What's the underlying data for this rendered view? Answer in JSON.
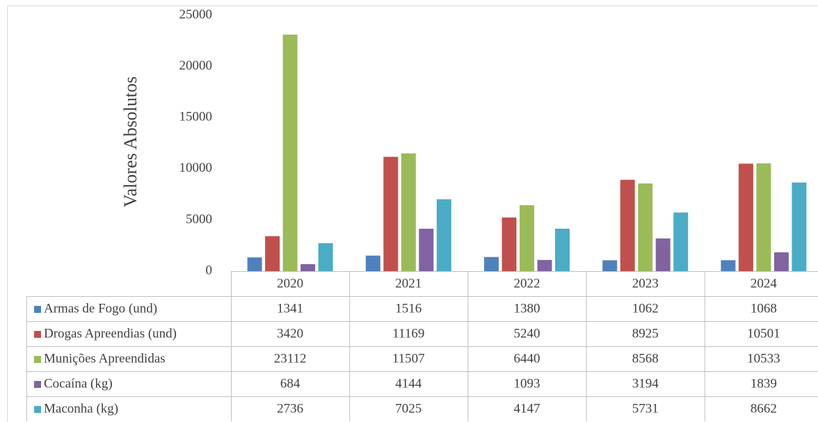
{
  "chart_data": {
    "type": "bar",
    "y_label": "Valores Absolutos",
    "categories": [
      "2020",
      "2021",
      "2022",
      "2023",
      "2024"
    ],
    "series": [
      {
        "name": "Armas de Fogo (und)",
        "color": "#4f81bd",
        "values": [
          1341,
          1516,
          1380,
          1062,
          1068
        ]
      },
      {
        "name": "Drogas Apreendias (und)",
        "color": "#c0504d",
        "values": [
          3420,
          11169,
          5240,
          8925,
          10501
        ]
      },
      {
        "name": "Munições Apreendidas",
        "color": "#9bbb59",
        "values": [
          23112,
          11507,
          6440,
          8568,
          10533
        ]
      },
      {
        "name": "Cocaína (kg)",
        "color": "#8064a2",
        "values": [
          684,
          4144,
          1093,
          3194,
          1839
        ]
      },
      {
        "name": "Maconha (kg)",
        "color": "#4bacc6",
        "values": [
          2736,
          7025,
          4147,
          5731,
          8662
        ]
      }
    ],
    "ylim": [
      0,
      25000
    ],
    "yticks": [
      0,
      5000,
      10000,
      15000,
      20000,
      25000
    ],
    "grid": false,
    "data_table": true
  }
}
